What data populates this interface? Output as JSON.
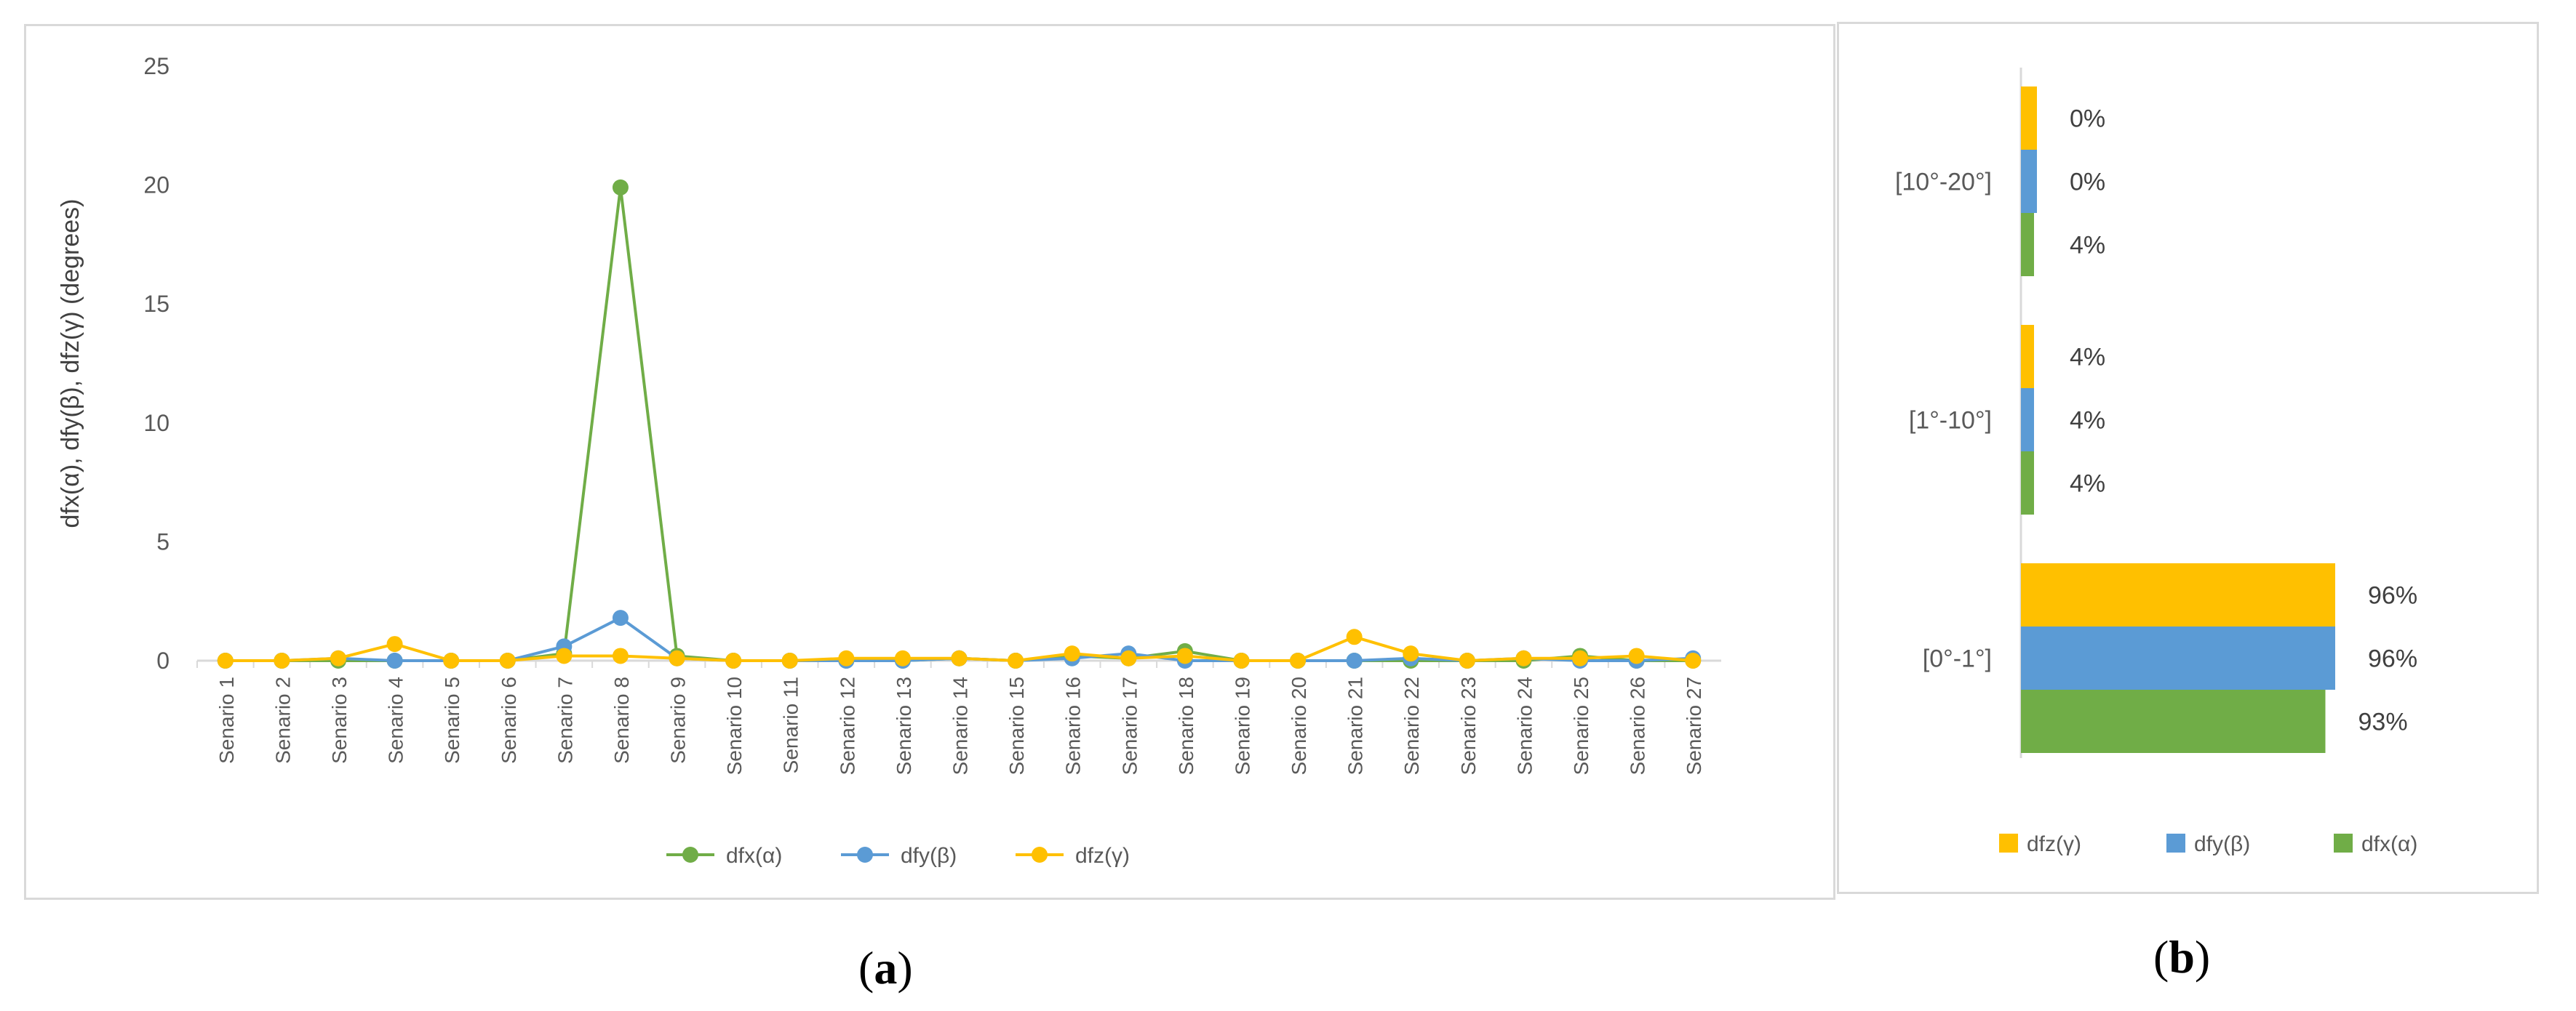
{
  "chart_data": [
    {
      "type": "line",
      "panel_label": "a",
      "title": "",
      "xlabel": "",
      "ylabel": "dfx(α),  dfy(β),  dfz(γ) (degrees)",
      "ylim": [
        0,
        25
      ],
      "yticks": [
        0,
        5,
        10,
        15,
        20,
        25
      ],
      "grid": false,
      "legend_position": "bottom",
      "categories": [
        "Senario 1",
        "Senario 2",
        "Senario 3",
        "Senario 4",
        "Senario 5",
        "Senario 6",
        "Senario 7",
        "Senario 8",
        "Senario 9",
        "Senario 10",
        "Senario 11",
        "Senario 12",
        "Senario 13",
        "Senario 14",
        "Senario 15",
        "Senario 16",
        "Senario 17",
        "Senario 18",
        "Senario 19",
        "Senario 20",
        "Senario 21",
        "Senario 22",
        "Senario 23",
        "Senario 24",
        "Senario 25",
        "Senario 26",
        "Senario 27"
      ],
      "series": [
        {
          "name": "dfx(α)",
          "color": "#70ad47",
          "values": [
            0,
            0,
            0,
            0,
            0,
            0,
            0.3,
            19.9,
            0.2,
            0,
            0,
            0,
            0,
            0.1,
            0,
            0.2,
            0.1,
            0.4,
            0,
            0,
            0,
            0,
            0,
            0,
            0.2,
            0,
            0
          ]
        },
        {
          "name": "dfy(β)",
          "color": "#5b9bd5",
          "values": [
            0,
            0,
            0.1,
            0,
            0,
            0,
            0.6,
            1.8,
            0.1,
            0,
            0,
            0,
            0,
            0.1,
            0,
            0.1,
            0.3,
            0,
            0,
            0,
            0,
            0.1,
            0,
            0.1,
            0,
            0,
            0.1
          ]
        },
        {
          "name": "dfz(γ)",
          "color": "#ffc000",
          "values": [
            0,
            0,
            0.1,
            0.7,
            0,
            0,
            0.2,
            0.2,
            0.1,
            0,
            0,
            0.1,
            0.1,
            0.1,
            0,
            0.3,
            0.1,
            0.2,
            0,
            0,
            1.0,
            0.3,
            0,
            0.1,
            0.1,
            0.2,
            0
          ]
        }
      ]
    },
    {
      "type": "bar",
      "orientation": "horizontal",
      "panel_label": "b",
      "title": "",
      "categories": [
        "[10°-20°]",
        "[1°-10°]",
        "[0°-1°]"
      ],
      "xlim": [
        0,
        100
      ],
      "legend_position": "bottom",
      "series": [
        {
          "name": "dfz(γ)",
          "color": "#ffc000",
          "values": [
            0,
            4,
            96
          ],
          "labels": [
            "0%",
            "4%",
            "96%"
          ]
        },
        {
          "name": "dfy(β)",
          "color": "#5b9bd5",
          "values": [
            0,
            4,
            96
          ],
          "labels": [
            "0%",
            "4%",
            "96%"
          ]
        },
        {
          "name": "dfx(α)",
          "color": "#70ad47",
          "values": [
            4,
            4,
            93
          ],
          "labels": [
            "4%",
            "4%",
            "93%"
          ]
        }
      ]
    }
  ],
  "captions": {
    "a": "a",
    "b": "b"
  }
}
